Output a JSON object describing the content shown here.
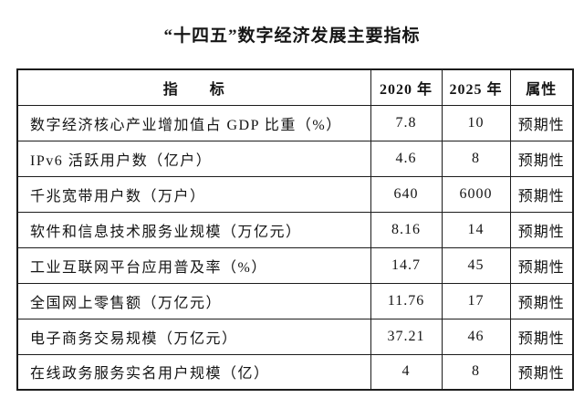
{
  "title": "“十四五”数字经济发展主要指标",
  "table": {
    "headers": {
      "indicator": "指　　标",
      "y2020": "2020 年",
      "y2025": "2025 年",
      "attribute": "属性"
    },
    "rows": [
      {
        "indicator": "数字经济核心产业增加值占 GDP 比重（%）",
        "y2020": "7.8",
        "y2025": "10",
        "attribute": "预期性"
      },
      {
        "indicator": "IPv6 活跃用户数（亿户）",
        "y2020": "4.6",
        "y2025": "8",
        "attribute": "预期性"
      },
      {
        "indicator": "千兆宽带用户数（万户）",
        "y2020": "640",
        "y2025": "6000",
        "attribute": "预期性"
      },
      {
        "indicator": "软件和信息技术服务业规模（万亿元）",
        "y2020": "8.16",
        "y2025": "14",
        "attribute": "预期性"
      },
      {
        "indicator": "工业互联网平台应用普及率（%）",
        "y2020": "14.7",
        "y2025": "45",
        "attribute": "预期性"
      },
      {
        "indicator": "全国网上零售额（万亿元）",
        "y2020": "11.76",
        "y2025": "17",
        "attribute": "预期性"
      },
      {
        "indicator": "电子商务交易规模（万亿元）",
        "y2020": "37.21",
        "y2025": "46",
        "attribute": "预期性"
      },
      {
        "indicator": "在线政务服务实名用户规模（亿）",
        "y2020": "4",
        "y2025": "8",
        "attribute": "预期性"
      }
    ],
    "text_color": "#141414",
    "border_color": "#1c1c1c",
    "background_color": "#ffffff"
  }
}
